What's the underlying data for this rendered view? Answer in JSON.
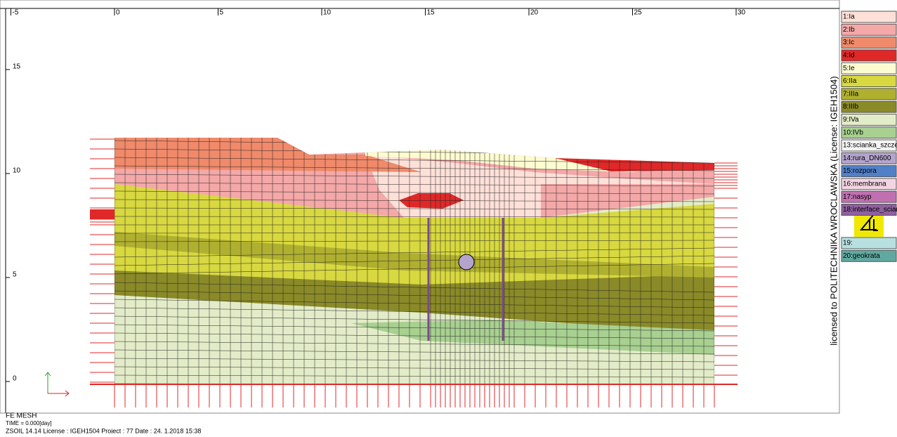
{
  "axes": {
    "x_ticks": [
      -5,
      0,
      5,
      10,
      15,
      20,
      25,
      30
    ],
    "y_ticks": [
      15,
      10,
      5,
      0
    ]
  },
  "legend": [
    {
      "label": "1:Ia",
      "color": "#fde0d8"
    },
    {
      "label": "2:Ib",
      "color": "#f4a8a8"
    },
    {
      "label": "3:Ic",
      "color": "#f08a6a"
    },
    {
      "label": "4:Id",
      "color": "#e02828"
    },
    {
      "label": "5:Ie",
      "color": "#fdfbd0"
    },
    {
      "label": "6:IIa",
      "color": "#d8d840"
    },
    {
      "label": "7:IIIa",
      "color": "#b0b030"
    },
    {
      "label": "8:IIIb",
      "color": "#8a8a28"
    },
    {
      "label": "9:IVa",
      "color": "#e3ecc8"
    },
    {
      "label": "10:IVb",
      "color": "#a8d090"
    },
    {
      "label": "13:scianka_szcze",
      "color": "#f4f4f4"
    },
    {
      "label": "14:rura_DN600",
      "color": "#b4a4cc"
    },
    {
      "label": "15:rozpora",
      "color": "#5080c8"
    },
    {
      "label": "16:membrana",
      "color": "#f2d4e2"
    },
    {
      "label": "17:nasyp",
      "color": "#c070b0"
    },
    {
      "label": "18:interface_sciar",
      "color": "#9060a0"
    }
  ],
  "legend_extra": [
    {
      "label": "19:",
      "color": "#b8e0e0"
    },
    {
      "label": "20:geokrata",
      "color": "#60a8a0"
    }
  ],
  "license_text": "licensed to POLITECHNIKA WROCLAWSKA (License: IGEH1504)",
  "footer": {
    "title": "FE MESH",
    "time": "TIME = 0.000[day]",
    "info": "ZSOIL 14.14   License :  IGEH1504   Project : 77     Date : 24. 1.2018  15:38"
  }
}
